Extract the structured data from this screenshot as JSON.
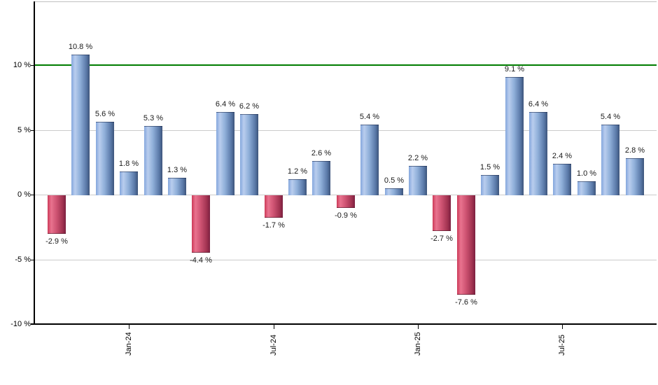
{
  "chart_data": {
    "type": "bar",
    "description": "Monthly total returns bar chart",
    "unit": "%",
    "values": [
      -2.9,
      10.8,
      5.6,
      1.8,
      5.3,
      1.3,
      -4.4,
      6.4,
      6.2,
      -1.7,
      1.2,
      2.6,
      -0.9,
      5.4,
      0.5,
      2.2,
      -2.7,
      -7.6,
      1.5,
      9.1,
      6.4,
      2.4,
      1.0,
      5.4,
      2.8
    ],
    "bar_labels": [
      "-2.9 %",
      "10.8 %",
      "5.6 %",
      "1.8 %",
      "5.3 %",
      "1.3 %",
      "-4.4 %",
      "6.4 %",
      "6.2 %",
      "-1.7 %",
      "1.2 %",
      "2.6 %",
      "-0.9 %",
      "5.4 %",
      "0.5 %",
      "2.2 %",
      "-2.7 %",
      "-7.6 %",
      "1.5 %",
      "9.1 %",
      "6.4 %",
      "2.4 %",
      "1.0 %",
      "5.4 %",
      "2.8 %"
    ],
    "x_ticks": [
      {
        "index": 3,
        "label": "Jan-24"
      },
      {
        "index": 9,
        "label": "Jul-24"
      },
      {
        "index": 15,
        "label": "Jan-25"
      },
      {
        "index": 21,
        "label": "Jul-25"
      }
    ],
    "y_ticks": [
      {
        "value": 10,
        "label": "10 %"
      },
      {
        "value": 5,
        "label": "5 %"
      },
      {
        "value": 0,
        "label": "0 %"
      },
      {
        "value": -5,
        "label": "-5 %"
      },
      {
        "value": -10,
        "label": "-10 %"
      }
    ],
    "ylim": [
      -10,
      14.9
    ],
    "grid": true,
    "legend": null,
    "reference_line": {
      "value": 10,
      "color": "#007d00"
    },
    "colors": {
      "positive_gradient": [
        "#84a7dd",
        "#b9cdee",
        "#8fafd9",
        "#5a79a8",
        "#3d547b"
      ],
      "negative_gradient": [
        "#cc3a58",
        "#e9738f",
        "#cf5473",
        "#a23351",
        "#7c2040"
      ],
      "gridline": "#cbcbcb",
      "axis": "#000000",
      "plot_border_top": "#c0c0c0",
      "label_text": "#1a1a1a",
      "background": "#ffffff"
    }
  }
}
